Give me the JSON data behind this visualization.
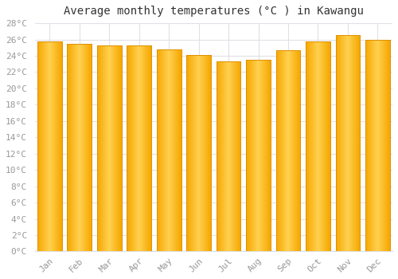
{
  "title": "Average monthly temperatures (°C ) in Kawangu",
  "months": [
    "Jan",
    "Feb",
    "Mar",
    "Apr",
    "May",
    "Jun",
    "Jul",
    "Aug",
    "Sep",
    "Oct",
    "Nov",
    "Dec"
  ],
  "values": [
    25.8,
    25.5,
    25.3,
    25.3,
    24.8,
    24.1,
    23.3,
    23.5,
    24.7,
    25.8,
    26.5,
    26.0
  ],
  "bar_color_left": "#F5A800",
  "bar_color_center": "#FFD050",
  "bar_color_right": "#F5A800",
  "background_color": "#FFFFFF",
  "plot_bg_color": "#FFFFFF",
  "grid_color": "#E0E0E8",
  "ylim": [
    0,
    28
  ],
  "ytick_step": 2,
  "title_fontsize": 10,
  "tick_fontsize": 8,
  "tick_color": "#999999",
  "font_family": "monospace",
  "bar_width": 0.82
}
